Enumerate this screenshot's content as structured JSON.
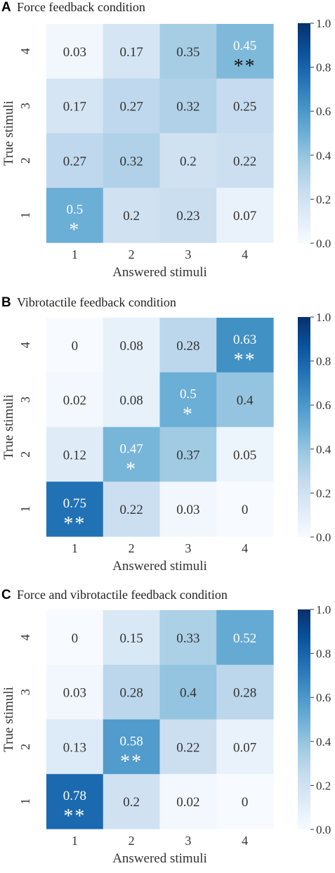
{
  "chart_data": [
    {
      "type": "heatmap",
      "panel_letter": "A",
      "title": "Force feedback condition",
      "xlabel": "Answered stimuli",
      "ylabel": "True stimuli",
      "x_categories": [
        "1",
        "2",
        "3",
        "4"
      ],
      "y_categories": [
        "1",
        "2",
        "3",
        "4"
      ],
      "rows": [
        {
          "true": "4",
          "values": [
            0.03,
            0.17,
            0.35,
            0.45
          ],
          "labels": [
            "0.03",
            "0.17",
            "0.35",
            "0.45"
          ],
          "marks": [
            "",
            "",
            "",
            "**"
          ]
        },
        {
          "true": "3",
          "values": [
            0.17,
            0.27,
            0.32,
            0.25
          ],
          "labels": [
            "0.17",
            "0.27",
            "0.32",
            "0.25"
          ],
          "marks": [
            "",
            "",
            "",
            ""
          ]
        },
        {
          "true": "2",
          "values": [
            0.27,
            0.32,
            0.2,
            0.22
          ],
          "labels": [
            "0.27",
            "0.32",
            "0.2",
            "0.22"
          ],
          "marks": [
            "",
            "",
            "",
            ""
          ]
        },
        {
          "true": "1",
          "values": [
            0.5,
            0.2,
            0.23,
            0.07
          ],
          "labels": [
            "0.5",
            "0.2",
            "0.23",
            "0.07"
          ],
          "marks": [
            "*",
            "",
            "",
            ""
          ]
        }
      ],
      "colorbar": {
        "min": 0,
        "max": 1,
        "ticks": [
          "0.0",
          "0.2",
          "0.4",
          "0.6",
          "0.8",
          "1.0"
        ],
        "colormap": "Blues"
      }
    },
    {
      "type": "heatmap",
      "panel_letter": "B",
      "title": "Vibrotactile feedback condition",
      "xlabel": "Answered stimuli",
      "ylabel": "True stimuli",
      "x_categories": [
        "1",
        "2",
        "3",
        "4"
      ],
      "y_categories": [
        "1",
        "2",
        "3",
        "4"
      ],
      "rows": [
        {
          "true": "4",
          "values": [
            0,
            0.08,
            0.28,
            0.63
          ],
          "labels": [
            "0",
            "0.08",
            "0.28",
            "0.63"
          ],
          "marks": [
            "",
            "",
            "",
            "**"
          ]
        },
        {
          "true": "3",
          "values": [
            0.02,
            0.08,
            0.5,
            0.4
          ],
          "labels": [
            "0.02",
            "0.08",
            "0.5",
            "0.4"
          ],
          "marks": [
            "",
            "",
            "*",
            ""
          ]
        },
        {
          "true": "2",
          "values": [
            0.12,
            0.47,
            0.37,
            0.05
          ],
          "labels": [
            "0.12",
            "0.47",
            "0.37",
            "0.05"
          ],
          "marks": [
            "",
            "*",
            "",
            ""
          ]
        },
        {
          "true": "1",
          "values": [
            0.75,
            0.22,
            0.03,
            0
          ],
          "labels": [
            "0.75",
            "0.22",
            "0.03",
            "0"
          ],
          "marks": [
            "**",
            "",
            "",
            ""
          ]
        }
      ],
      "colorbar": {
        "min": 0,
        "max": 1,
        "ticks": [
          "0.0",
          "0.2",
          "0.4",
          "0.6",
          "0.8",
          "1.0"
        ],
        "colormap": "Blues"
      }
    },
    {
      "type": "heatmap",
      "panel_letter": "C",
      "title": "Force and vibrotactile feedback condition",
      "xlabel": "Answered stimuli",
      "ylabel": "True stimuli",
      "x_categories": [
        "1",
        "2",
        "3",
        "4"
      ],
      "y_categories": [
        "1",
        "2",
        "3",
        "4"
      ],
      "rows": [
        {
          "true": "4",
          "values": [
            0,
            0.15,
            0.33,
            0.52
          ],
          "labels": [
            "0",
            "0.15",
            "0.33",
            "0.52"
          ],
          "marks": [
            "",
            "",
            "",
            ""
          ]
        },
        {
          "true": "3",
          "values": [
            0.03,
            0.28,
            0.4,
            0.28
          ],
          "labels": [
            "0.03",
            "0.28",
            "0.4",
            "0.28"
          ],
          "marks": [
            "",
            "",
            "",
            ""
          ]
        },
        {
          "true": "2",
          "values": [
            0.13,
            0.58,
            0.22,
            0.07
          ],
          "labels": [
            "0.13",
            "0.58",
            "0.22",
            "0.07"
          ],
          "marks": [
            "",
            "**",
            "",
            ""
          ]
        },
        {
          "true": "1",
          "values": [
            0.78,
            0.2,
            0.02,
            0
          ],
          "labels": [
            "0.78",
            "0.2",
            "0.02",
            "0"
          ],
          "marks": [
            "**",
            "",
            "",
            ""
          ]
        }
      ],
      "colorbar": {
        "min": 0,
        "max": 1,
        "ticks": [
          "0.0",
          "0.2",
          "0.4",
          "0.6",
          "0.8",
          "1.0"
        ],
        "colormap": "Blues"
      }
    }
  ]
}
